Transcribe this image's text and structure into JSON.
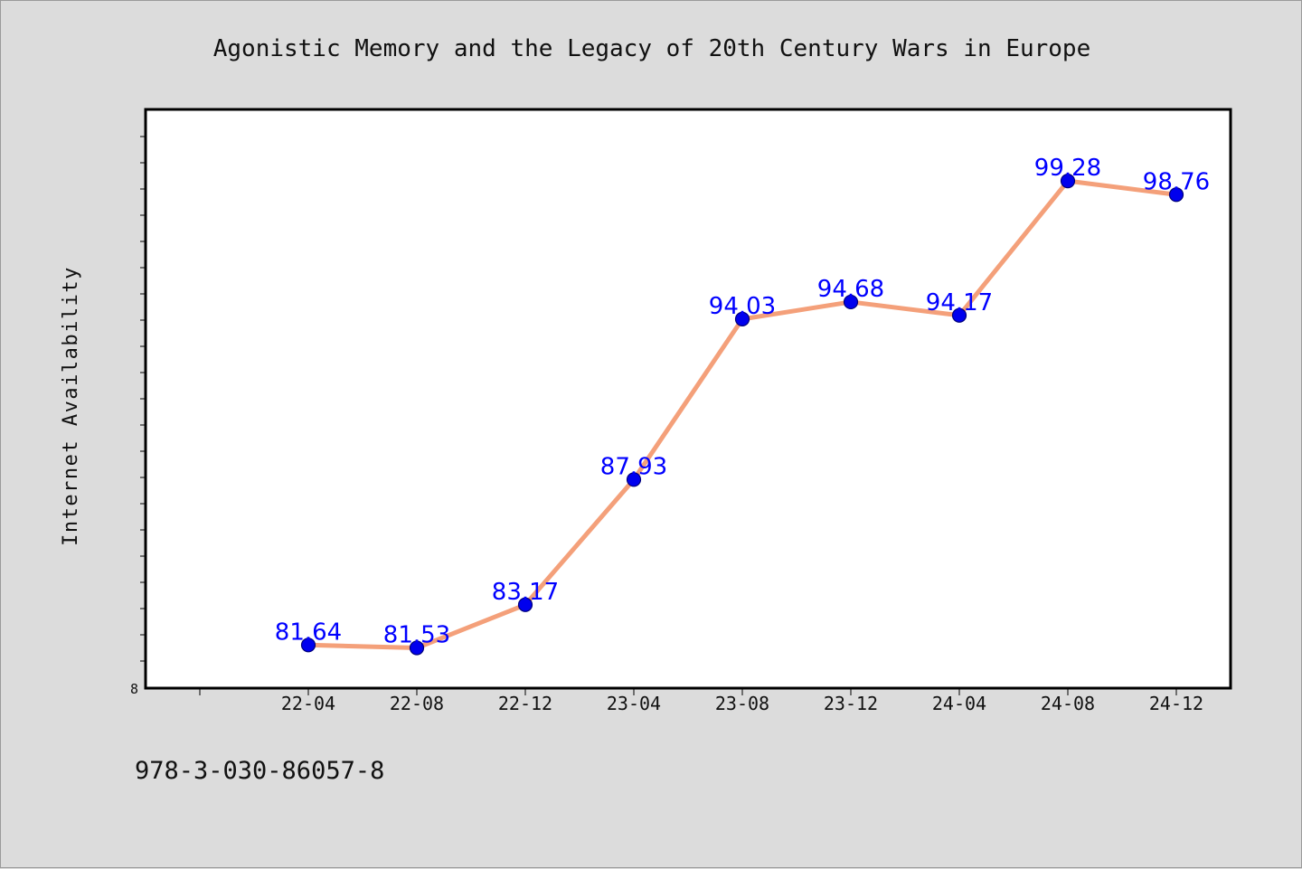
{
  "chart_data": {
    "type": "line",
    "title": "Agonistic Memory and the Legacy of 20th Century Wars in Europe",
    "xlabel": "",
    "ylabel": "Internet Availability",
    "categories": [
      "22-04",
      "22-08",
      "22-12",
      "23-04",
      "23-08",
      "23-12",
      "24-04",
      "24-08",
      "24-12"
    ],
    "series": [
      {
        "values": [
          81.64,
          81.53,
          83.17,
          87.93,
          94.03,
          94.68,
          94.17,
          99.28,
          98.76
        ],
        "line_color": "#f4a07a",
        "marker_color": "#0000ee",
        "label_color": "#0000ff"
      }
    ],
    "ylim": [
      80.0,
      102.0
    ],
    "y_tick_labels": [
      {
        "value": 80.0,
        "label": "8"
      }
    ],
    "grid": false,
    "legend": "none"
  },
  "footer": {
    "isbn": "978-3-030-86057-8"
  }
}
